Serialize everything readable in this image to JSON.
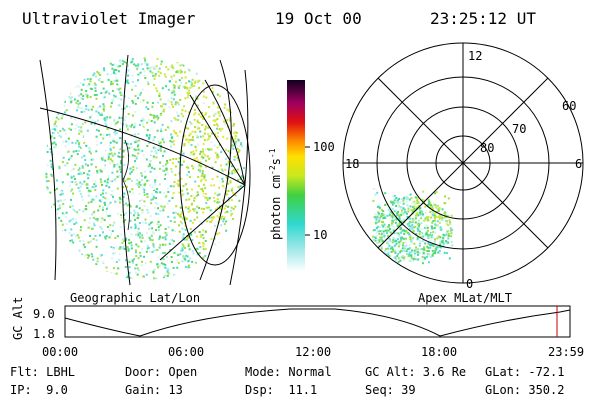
{
  "header": {
    "title": "Ultraviolet Imager",
    "date": "19 Oct 00",
    "time": "23:25:12 UT"
  },
  "colorbar": {
    "unit": [
      "photon cm",
      "-2",
      "s",
      "-1"
    ],
    "ticks": [
      "100",
      "10"
    ]
  },
  "left_panel": {
    "caption": "Geographic Lat/Lon"
  },
  "right_panel": {
    "caption": "Apex MLat/MLT",
    "mlt_labels": [
      "12",
      "18",
      "6",
      "0"
    ],
    "lat_labels": [
      "60",
      "70",
      "80"
    ]
  },
  "altitude_plot": {
    "axis_label": "GC Alt",
    "y_labels": [
      "9.0",
      "1.8"
    ],
    "x_labels": [
      "00:00",
      "06:00",
      "12:00",
      "18:00",
      "23:59"
    ]
  },
  "footer": {
    "rows": [
      [
        "Flt: LBHL",
        "Door: Open",
        "Mode: Normal",
        "GC Alt: 3.6 Re",
        "GLat: -72.1"
      ],
      [
        "IP:  9.0",
        "Gain: 13",
        "Dsp:  11.1",
        "Seq: 39",
        "GLon: 350.2"
      ]
    ]
  }
}
